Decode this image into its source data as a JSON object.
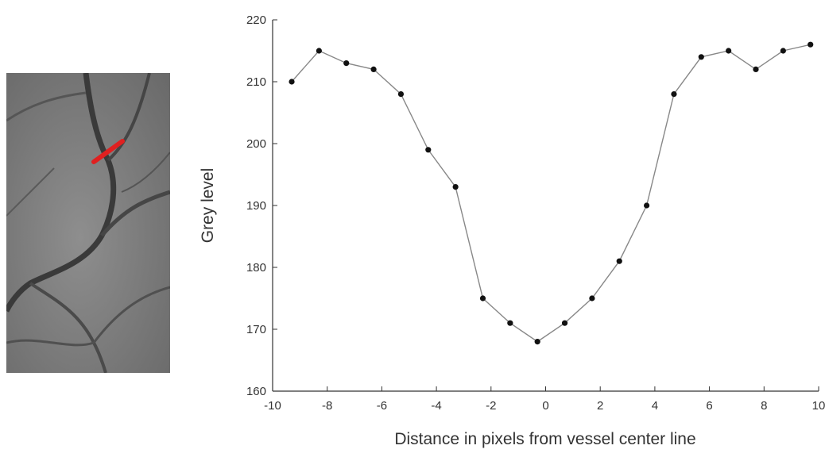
{
  "chart_data": {
    "type": "line",
    "title": "",
    "xlabel": "Distance in pixels from vessel center line",
    "ylabel": "Grey level",
    "xlim": [
      -10,
      10
    ],
    "ylim": [
      160,
      220
    ],
    "xticks": [
      -10,
      -8,
      -6,
      -4,
      -2,
      0,
      2,
      4,
      6,
      8,
      10
    ],
    "xtick_labels": [
      "-10",
      "-8",
      "-6",
      "-4",
      "-2",
      "0",
      "2",
      "4",
      "6",
      "8",
      "10"
    ],
    "yticks": [
      160,
      170,
      180,
      190,
      200,
      210,
      220
    ],
    "ytick_labels": [
      "160",
      "170",
      "180",
      "190",
      "200",
      "210",
      "220"
    ],
    "grid": false,
    "series": [
      {
        "x": [
          -9.3,
          -8.3,
          -7.3,
          -6.3,
          -5.3,
          -4.3,
          -3.3,
          -2.3,
          -1.3,
          -0.3,
          0.7,
          1.7,
          2.7,
          3.7,
          4.7,
          5.7,
          6.7,
          7.7,
          8.7,
          9.7
        ],
        "y": [
          210,
          215,
          213,
          212,
          208,
          199,
          193,
          175,
          171,
          168,
          171,
          175,
          181,
          190,
          208,
          214,
          215,
          212,
          215,
          216
        ]
      }
    ]
  },
  "inset_image": {
    "description_icon": "retina-vessel-crop",
    "marker_color": "#e02020"
  },
  "colors": {
    "line": "#888888",
    "marker": "#111111",
    "axis": "#333333"
  }
}
